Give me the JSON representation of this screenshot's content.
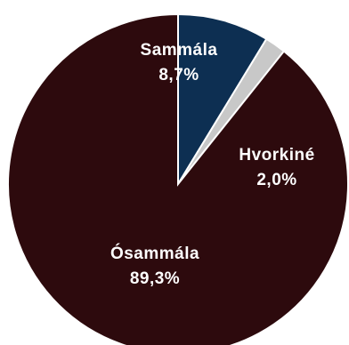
{
  "chart_data": {
    "type": "pie",
    "start_angle_deg": 0,
    "direction": "clockwise",
    "slices": [
      {
        "label": "Sammála",
        "value": 8.7,
        "value_label": "8,7%",
        "color": "#0d2f52"
      },
      {
        "label": "Hvorkiné",
        "value": 2.0,
        "value_label": "2,0%",
        "color": "#c8c8c8"
      },
      {
        "label": "Ósammála",
        "value": 89.3,
        "value_label": "89,3%",
        "color": "#2d0a0d"
      }
    ]
  }
}
